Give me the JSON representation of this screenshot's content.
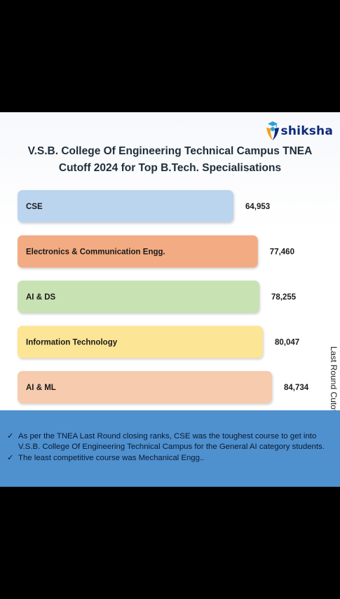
{
  "logo": {
    "text": "shiksha",
    "icon": "graduate-cap-icon"
  },
  "chart_data": {
    "type": "bar",
    "orientation": "horizontal",
    "title": "V.S.B. College Of Engineering Technical Campus TNEA Cutoff 2024 for Top B.Tech. Specialisations",
    "ylabel": "Last Round Cutoff",
    "categories": [
      "CSE",
      "Electronics & Communication Engg.",
      "AI & DS",
      "Information Technology",
      "AI & ML"
    ],
    "values": [
      64953,
      77460,
      78255,
      80047,
      84734
    ],
    "value_labels": [
      "64,953",
      "77,460",
      "78,255",
      "80,047",
      "84,734"
    ],
    "colors": [
      "#bcd5ee",
      "#f2ab82",
      "#c9e2b4",
      "#fde596",
      "#f6cbae"
    ],
    "grid": false,
    "legend": "none"
  },
  "notes": [
    "As per the TNEA Last Round closing ranks, CSE was the toughest course to get into V.S.B. College Of Engineering Technical Campus for the General AI category students.",
    "The least competitive course was Mechanical Engg.."
  ]
}
